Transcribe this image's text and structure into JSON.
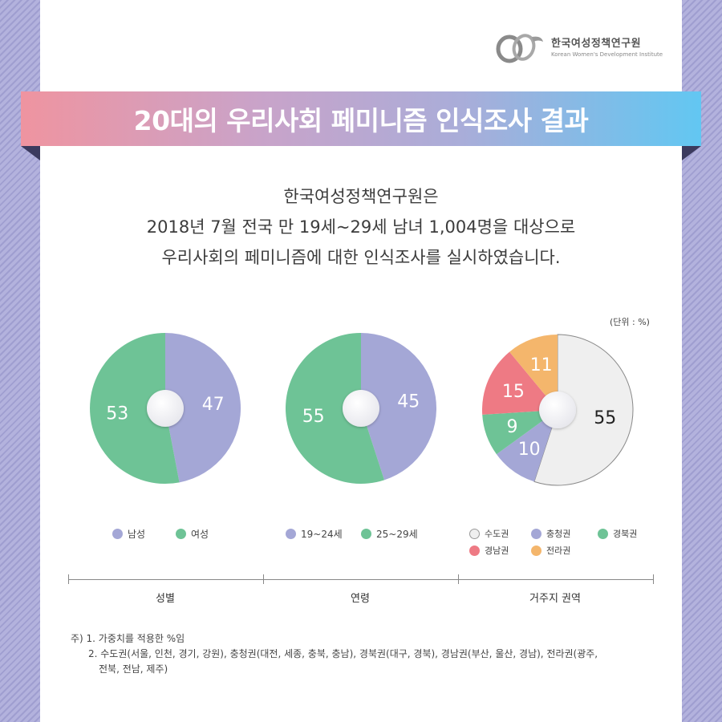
{
  "logo": {
    "name_ko": "한국여성정책연구원",
    "name_en": "Korean Women's Development Institute"
  },
  "title": "20대의 우리사회 페미니즘 인식조사 결과",
  "intro": [
    "한국여성정책연구원은",
    "2018년 7월 전국 만 19세~29세 남녀 1,004명을 대상으로",
    "우리사회의 페미니즘에 대한 인식조사를 실시하였습니다."
  ],
  "unit_label": "(단위 : %)",
  "colors": {
    "male": "#a4a7d6",
    "female": "#6ec396",
    "capital": "#efefef",
    "chungcheong": "#a4a7d6",
    "gyeongbuk": "#6ec396",
    "gyeongnam": "#ee7a84",
    "jeolla": "#f4b66c"
  },
  "chart_data": [
    {
      "type": "pie",
      "category": "성별",
      "series": [
        {
          "name": "남성",
          "value": 47,
          "color": "#a4a7d6"
        },
        {
          "name": "여성",
          "value": 53,
          "color": "#6ec396"
        }
      ]
    },
    {
      "type": "pie",
      "category": "연령",
      "series": [
        {
          "name": "19~24세",
          "value": 45,
          "color": "#a4a7d6"
        },
        {
          "name": "25~29세",
          "value": 55,
          "color": "#6ec396"
        }
      ]
    },
    {
      "type": "pie",
      "category": "거주지 권역",
      "series": [
        {
          "name": "수도권",
          "value": 55,
          "color": "#efefef"
        },
        {
          "name": "충청권",
          "value": 10,
          "color": "#a4a7d6"
        },
        {
          "name": "경북권",
          "value": 9,
          "color": "#6ec396"
        },
        {
          "name": "경남권",
          "value": 15,
          "color": "#ee7a84"
        },
        {
          "name": "전라권",
          "value": 11,
          "color": "#f4b66c"
        }
      ]
    }
  ],
  "legend": {
    "gender": [
      "남성",
      "여성"
    ],
    "age": [
      "19~24세",
      "25~29세"
    ],
    "region": [
      "수도권",
      "충청권",
      "경북권",
      "경남권",
      "전라권"
    ]
  },
  "categories": [
    "성별",
    "연령",
    "거주지 권역"
  ],
  "notes": {
    "line1": "주) 1. 가중치를 적용한 %임",
    "line2": "2. 수도권(서울, 인천, 경기, 강원), 충청권(대전, 세종, 충북, 충남), 경북권(대구, 경북), 경남권(부산, 울산, 경남), 전라권(광주,",
    "line3": "전북, 전남, 제주)"
  }
}
